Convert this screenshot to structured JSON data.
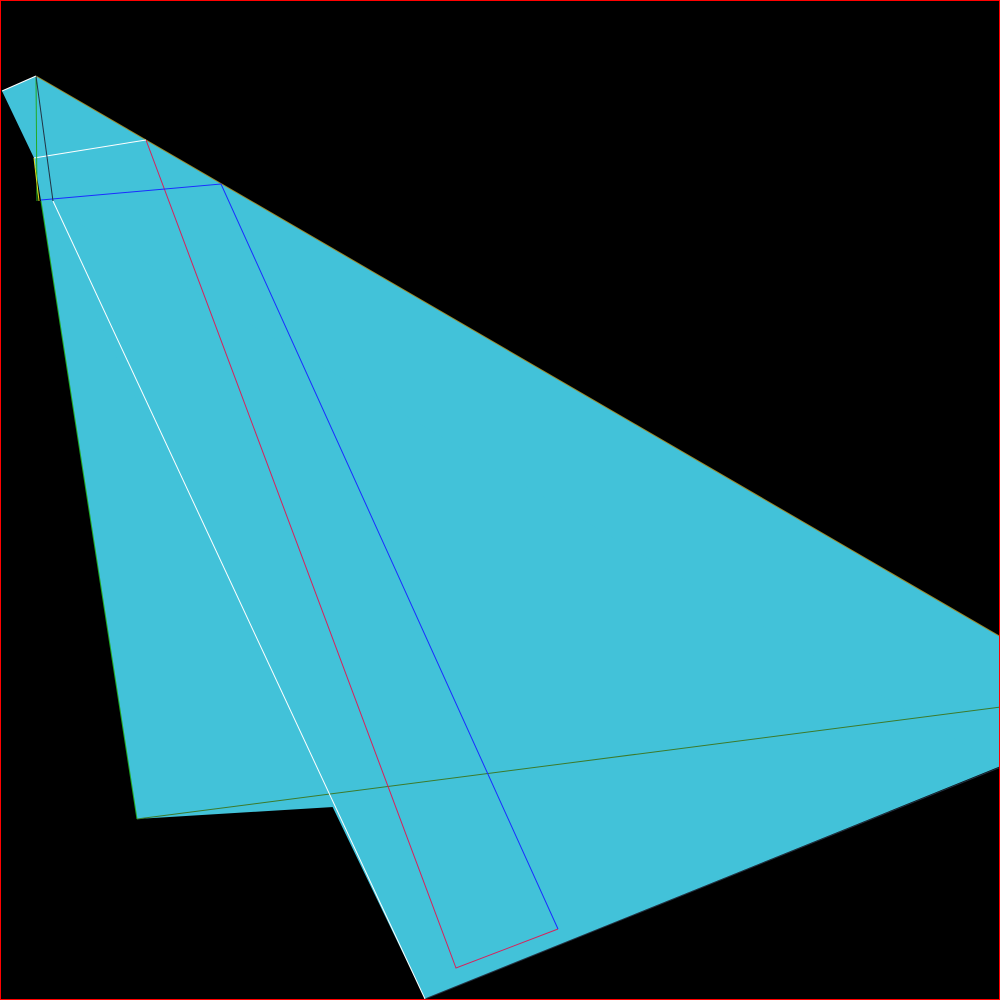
{
  "scene": {
    "background_color": "#000000",
    "frame_color": "#ff0000",
    "fill_color": "#42c2d9",
    "line_colors": {
      "olive": "#9a8a2e",
      "white": "#ffffff",
      "crimson": "#d8205a",
      "blue": "#1a2cff",
      "green": "#22aa22",
      "dark_green": "#3c7a2a",
      "dark": "#223344",
      "yellow": "#e0e020"
    }
  }
}
